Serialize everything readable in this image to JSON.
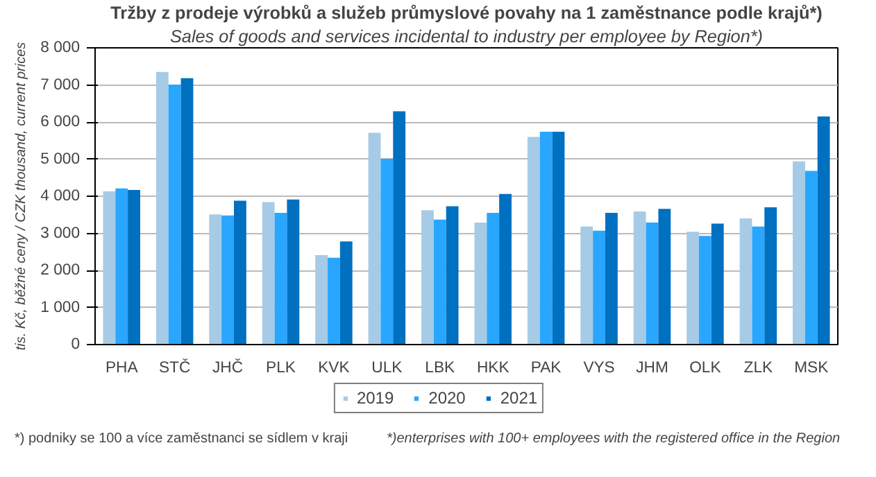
{
  "chart_data": {
    "type": "bar",
    "title": "Tržby z prodeje výrobků a služeb průmyslové povahy na 1 zaměstnance podle krajů*)",
    "subtitle": "Sales of goods and services incidental to industry per employee by Region*)",
    "ylabel": "tis. Kč, běžné ceny / CZK thousand, current prices",
    "categories": [
      "PHA",
      "STČ",
      "JHČ",
      "PLK",
      "KVK",
      "ULK",
      "LBK",
      "HKK",
      "PAK",
      "VYS",
      "JHM",
      "OLK",
      "ZLK",
      "MSK"
    ],
    "series": [
      {
        "name": "2019",
        "color": "#a6cbe6",
        "values": [
          4130,
          7350,
          3510,
          3840,
          2410,
          5710,
          3620,
          3290,
          5600,
          3180,
          3590,
          3040,
          3400,
          4940
        ]
      },
      {
        "name": "2020",
        "color": "#29a6ff",
        "values": [
          4210,
          7010,
          3480,
          3550,
          2340,
          5010,
          3370,
          3550,
          5740,
          3070,
          3290,
          2930,
          3180,
          4680
        ]
      },
      {
        "name": "2021",
        "color": "#0070c0",
        "values": [
          4170,
          7180,
          3880,
          3910,
          2780,
          6290,
          3730,
          4060,
          5740,
          3550,
          3660,
          3260,
          3700,
          6150
        ]
      }
    ],
    "ylim": [
      0,
      8000
    ],
    "yticks": [
      0,
      {
        "value": 1000,
        "label": "1 000"
      },
      {
        "value": 2000,
        "label": "2 000"
      },
      {
        "value": 3000,
        "label": "3 000"
      },
      {
        "value": 4000,
        "label": "4 000"
      },
      {
        "value": 5000,
        "label": "5 000"
      },
      {
        "value": 6000,
        "label": "6 000"
      },
      {
        "value": 7000,
        "label": "7 000"
      },
      {
        "value": 8000,
        "label": "8 000"
      }
    ],
    "grid": "y",
    "legend": "bottom",
    "annotations": [
      "*) podniky se 100 a více zaměstnanci se sídlem v kraji",
      "*)enterprises with 100+ employees with the registered office in the Region"
    ]
  }
}
